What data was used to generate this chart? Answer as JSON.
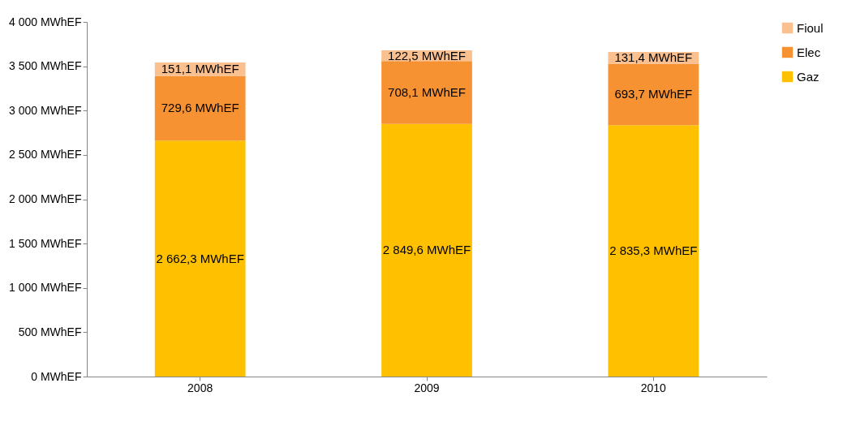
{
  "chart_data": {
    "type": "bar",
    "stacked": true,
    "categories": [
      "2008",
      "2009",
      "2010"
    ],
    "series": [
      {
        "name": "Gaz",
        "color": "#ffc000",
        "values": [
          2662.3,
          2849.6,
          2835.3
        ],
        "value_labels": [
          "2 662,3 MWhEF",
          "2 849,6 MWhEF",
          "2 835,3 MWhEF"
        ]
      },
      {
        "name": "Elec",
        "color": "#f79232",
        "values": [
          729.6,
          708.1,
          693.7
        ],
        "value_labels": [
          "729,6 MWhEF",
          "708,1 MWhEF",
          "693,7 MWhEF"
        ]
      },
      {
        "name": "Fioul",
        "color": "#fac090",
        "values": [
          151.1,
          122.5,
          131.4
        ],
        "value_labels": [
          "151,1 MWhEF",
          "122,5 MWhEF",
          "131,4 MWhEF"
        ]
      }
    ],
    "ylim": [
      0,
      4000
    ],
    "yticks": [
      {
        "value": 0,
        "label": "0 MWhEF"
      },
      {
        "value": 500,
        "label": "500 MWhEF"
      },
      {
        "value": 1000,
        "label": "1 000 MWhEF"
      },
      {
        "value": 1500,
        "label": "1 500 MWhEF"
      },
      {
        "value": 2000,
        "label": "2 000 MWhEF"
      },
      {
        "value": 2500,
        "label": "2 500 MWhEF"
      },
      {
        "value": 3000,
        "label": "3 000 MWhEF"
      },
      {
        "value": 3500,
        "label": "3 500 MWhEF"
      },
      {
        "value": 4000,
        "label": "4 000 MWhEF"
      }
    ],
    "grid": false,
    "legend": "right"
  }
}
